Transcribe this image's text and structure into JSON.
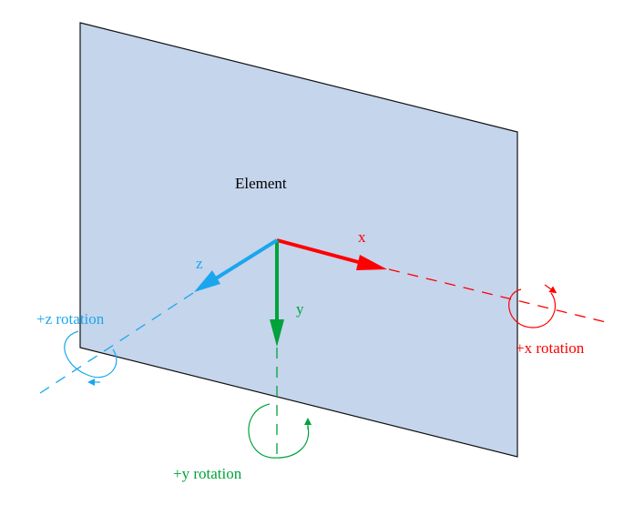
{
  "element_label": "Element",
  "axes": {
    "x": {
      "label": "x",
      "rotation_label": "+x rotation",
      "color": "#ff0000"
    },
    "y": {
      "label": "y",
      "rotation_label": "+y rotation",
      "color": "#00a23a"
    },
    "z": {
      "label": "z",
      "rotation_label": "+z rotation",
      "color": "#1aa6ee"
    }
  },
  "plane": {
    "fill": "#c5d5ec",
    "stroke": "#111111"
  }
}
